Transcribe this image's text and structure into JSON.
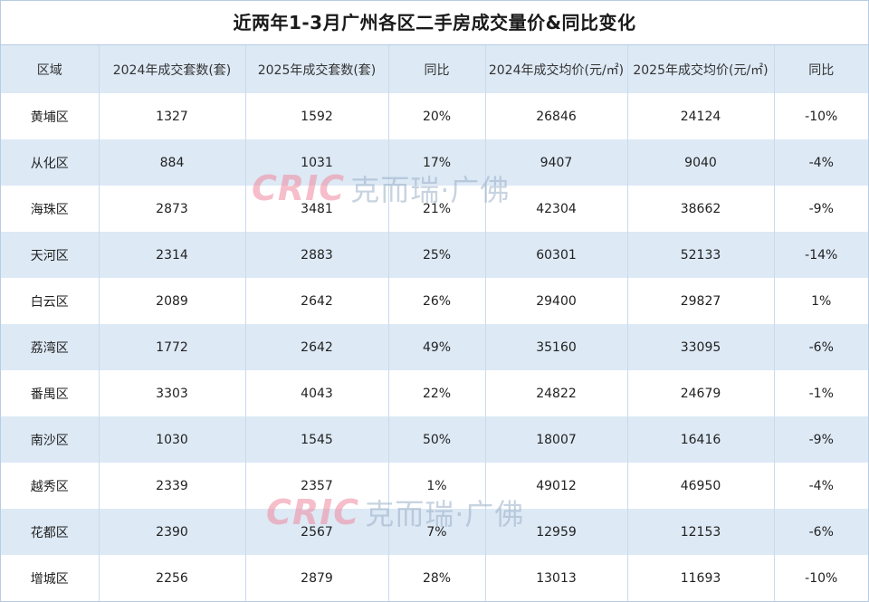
{
  "title": "近两年1-3月广州各区二手房成交量价&同比变化",
  "headers": [
    "区域",
    "2024年成交套数(套)",
    "2025年成交套数(套)",
    "同比",
    "2024年成交均价(元/㎡)",
    "2025年成交均价(元/㎡)",
    "同比"
  ],
  "rows": [
    {
      "district": "黄埔区",
      "units_2024": "1327",
      "units_2025": "1592",
      "units_yoy": "20%",
      "price_2024": "26846",
      "price_2025": "24124",
      "price_yoy": "-10%"
    },
    {
      "district": "从化区",
      "units_2024": "884",
      "units_2025": "1031",
      "units_yoy": "17%",
      "price_2024": "9407",
      "price_2025": "9040",
      "price_yoy": "-4%"
    },
    {
      "district": "海珠区",
      "units_2024": "2873",
      "units_2025": "3481",
      "units_yoy": "21%",
      "price_2024": "42304",
      "price_2025": "38662",
      "price_yoy": "-9%"
    },
    {
      "district": "天河区",
      "units_2024": "2314",
      "units_2025": "2883",
      "units_yoy": "25%",
      "price_2024": "60301",
      "price_2025": "52133",
      "price_yoy": "-14%"
    },
    {
      "district": "白云区",
      "units_2024": "2089",
      "units_2025": "2642",
      "units_yoy": "26%",
      "price_2024": "29400",
      "price_2025": "29827",
      "price_yoy": "1%"
    },
    {
      "district": "荔湾区",
      "units_2024": "1772",
      "units_2025": "2642",
      "units_yoy": "49%",
      "price_2024": "35160",
      "price_2025": "33095",
      "price_yoy": "-6%"
    },
    {
      "district": "番禺区",
      "units_2024": "3303",
      "units_2025": "4043",
      "units_yoy": "22%",
      "price_2024": "24822",
      "price_2025": "24679",
      "price_yoy": "-1%"
    },
    {
      "district": "南沙区",
      "units_2024": "1030",
      "units_2025": "1545",
      "units_yoy": "50%",
      "price_2024": "18007",
      "price_2025": "16416",
      "price_yoy": "-9%"
    },
    {
      "district": "越秀区",
      "units_2024": "2339",
      "units_2025": "2357",
      "units_yoy": "1%",
      "price_2024": "49012",
      "price_2025": "46950",
      "price_yoy": "-4%"
    },
    {
      "district": "花都区",
      "units_2024": "2390",
      "units_2025": "2567",
      "units_yoy": "7%",
      "price_2024": "12959",
      "price_2025": "12153",
      "price_yoy": "-6%"
    },
    {
      "district": "增城区",
      "units_2024": "2256",
      "units_2025": "2879",
      "units_yoy": "28%",
      "price_2024": "13013",
      "price_2025": "11693",
      "price_yoy": "-10%"
    }
  ],
  "watermark": {
    "logo": "CRIC",
    "text": "克而瑞·广佛"
  },
  "colors": {
    "header_bg": "#dde9f5",
    "stripe_bg": "#dde9f5",
    "border": "#c9dbec",
    "watermark_logo": "#f08aa0",
    "watermark_text": "#9bb0c8"
  }
}
